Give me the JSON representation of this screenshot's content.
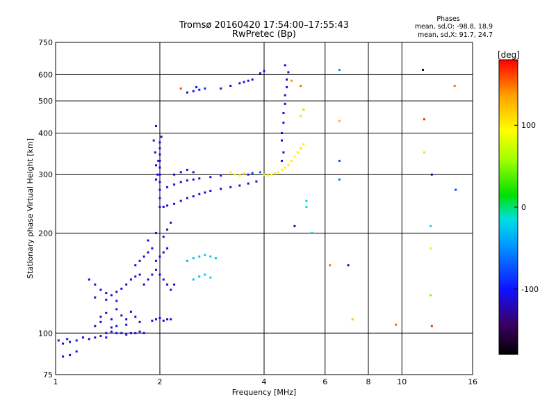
{
  "chart_data": {
    "type": "scatter",
    "title": "Tromsø 20160420 17:54:00–17:55:43",
    "subtitle": "RwPretec (Bp)",
    "xlabel": "Frequency [MHz]",
    "ylabel": "Stationary phase Virtual Height [km]",
    "x_scale": "log",
    "y_scale": "log",
    "xlim": [
      1,
      16
    ],
    "ylim": [
      75,
      750
    ],
    "x_ticks": [
      1,
      2,
      4,
      6,
      8,
      10,
      16
    ],
    "y_ticks": [
      75,
      100,
      200,
      300,
      400,
      500,
      600,
      750
    ],
    "grid": true,
    "stats": {
      "heading": "Phases",
      "line_o": "mean, sd,O: -98.8, 18.9",
      "line_x": "mean, sd,X:  91.7, 24.7"
    },
    "colorbar": {
      "label": "[deg]",
      "ticks": [
        100,
        0,
        -100
      ],
      "range": [
        -180,
        180
      ],
      "colors": [
        "#000000",
        "#3a0060",
        "#1010ff",
        "#00a0ff",
        "#00e0e0",
        "#00e000",
        "#a0ff00",
        "#ffff00",
        "#ffa000",
        "#ff0000"
      ]
    },
    "series": [
      {
        "points": [
          [
            1.02,
            95,
            -110
          ],
          [
            1.05,
            93,
            -110
          ],
          [
            1.08,
            96,
            -105
          ],
          [
            1.1,
            94,
            -110
          ],
          [
            1.15,
            95,
            -108
          ],
          [
            1.2,
            97,
            -110
          ],
          [
            1.25,
            96,
            -105
          ],
          [
            1.3,
            97,
            -110
          ],
          [
            1.35,
            98,
            -108
          ],
          [
            1.4,
            97,
            -105
          ],
          [
            1.05,
            85,
            -108
          ],
          [
            1.1,
            86,
            -110
          ],
          [
            1.15,
            88,
            -100
          ],
          [
            1.4,
            100,
            -112
          ],
          [
            1.45,
            101,
            -115
          ],
          [
            1.5,
            100,
            -112
          ],
          [
            1.55,
            100,
            -110
          ],
          [
            1.6,
            99,
            -112
          ],
          [
            1.65,
            100,
            -115
          ],
          [
            1.7,
            100,
            -112
          ],
          [
            1.75,
            101,
            -110
          ],
          [
            1.8,
            100,
            -112
          ],
          [
            1.45,
            104,
            -110
          ],
          [
            1.5,
            105,
            -112
          ],
          [
            1.6,
            106,
            -110
          ],
          [
            1.35,
            112,
            -110
          ],
          [
            1.4,
            115,
            -115
          ],
          [
            1.45,
            110,
            -112
          ],
          [
            1.5,
            118,
            -110
          ],
          [
            1.55,
            113,
            -112
          ],
          [
            1.6,
            110,
            -115
          ],
          [
            1.65,
            116,
            -110
          ],
          [
            1.7,
            112,
            -112
          ],
          [
            1.75,
            108,
            -110
          ],
          [
            1.3,
            105,
            -112
          ],
          [
            1.35,
            108,
            -110
          ],
          [
            1.9,
            109,
            -115
          ],
          [
            1.95,
            110,
            -112
          ],
          [
            2.0,
            111,
            -110
          ],
          [
            2.05,
            109,
            -112
          ],
          [
            2.1,
            110,
            -115
          ],
          [
            2.15,
            110,
            -110
          ],
          [
            1.25,
            145,
            -112
          ],
          [
            1.3,
            140,
            -110
          ],
          [
            1.35,
            135,
            -115
          ],
          [
            1.4,
            132,
            -112
          ],
          [
            1.45,
            130,
            -110
          ],
          [
            1.5,
            133,
            -112
          ],
          [
            1.55,
            136,
            -115
          ],
          [
            1.6,
            140,
            -110
          ],
          [
            1.65,
            145,
            -112
          ],
          [
            1.7,
            148,
            -110
          ],
          [
            1.75,
            150,
            -112
          ],
          [
            1.3,
            128,
            -110
          ],
          [
            1.4,
            126,
            -112
          ],
          [
            1.5,
            125,
            -110
          ],
          [
            1.7,
            160,
            -112
          ],
          [
            1.75,
            165,
            -110
          ],
          [
            1.8,
            170,
            -115
          ],
          [
            1.85,
            175,
            -112
          ],
          [
            1.9,
            180,
            -110
          ],
          [
            1.95,
            165,
            -112
          ],
          [
            2.0,
            170,
            -110
          ],
          [
            2.05,
            175,
            -112
          ],
          [
            2.1,
            180,
            -110
          ],
          [
            1.8,
            140,
            -112
          ],
          [
            1.85,
            145,
            -115
          ],
          [
            1.9,
            150,
            -112
          ],
          [
            1.95,
            155,
            -110
          ],
          [
            2.0,
            150,
            -112
          ],
          [
            2.05,
            145,
            -110
          ],
          [
            2.1,
            140,
            -112
          ],
          [
            2.15,
            135,
            -110
          ],
          [
            2.2,
            140,
            -112
          ],
          [
            1.85,
            190,
            -110
          ],
          [
            1.95,
            200,
            -112
          ],
          [
            2.05,
            195,
            -110
          ],
          [
            2.1,
            205,
            -112
          ],
          [
            2.15,
            215,
            -110
          ],
          [
            2.0,
            240,
            -110
          ],
          [
            2.0,
            255,
            -112
          ],
          [
            2.0,
            270,
            -110
          ],
          [
            2.0,
            285,
            -112
          ],
          [
            2.0,
            300,
            -110
          ],
          [
            2.0,
            315,
            -112
          ],
          [
            2.0,
            330,
            -110
          ],
          [
            2.0,
            345,
            -112
          ],
          [
            2.0,
            360,
            -110
          ],
          [
            2.0,
            375,
            -112
          ],
          [
            2.02,
            390,
            -110
          ],
          [
            1.98,
            330,
            -112
          ],
          [
            1.97,
            300,
            -110
          ],
          [
            1.95,
            290,
            -112
          ],
          [
            1.95,
            320,
            -110
          ],
          [
            1.94,
            350,
            -112
          ],
          [
            1.92,
            380,
            -110
          ],
          [
            1.95,
            420,
            -112
          ],
          [
            2.05,
            240,
            -110
          ],
          [
            2.1,
            242,
            -112
          ],
          [
            2.2,
            245,
            -110
          ],
          [
            2.3,
            250,
            -112
          ],
          [
            2.4,
            255,
            -110
          ],
          [
            2.5,
            258,
            -112
          ],
          [
            2.6,
            262,
            -110
          ],
          [
            2.7,
            265,
            -112
          ],
          [
            2.8,
            268,
            -110
          ],
          [
            3.0,
            272,
            -112
          ],
          [
            3.2,
            275,
            -110
          ],
          [
            3.4,
            278,
            -112
          ],
          [
            3.6,
            282,
            -110
          ],
          [
            3.8,
            286,
            -112
          ],
          [
            2.1,
            275,
            -110
          ],
          [
            2.2,
            280,
            -112
          ],
          [
            2.3,
            285,
            -110
          ],
          [
            2.4,
            288,
            -112
          ],
          [
            2.5,
            290,
            -110
          ],
          [
            2.6,
            292,
            -112
          ],
          [
            2.8,
            295,
            -110
          ],
          [
            3.0,
            298,
            -112
          ],
          [
            2.2,
            300,
            -110
          ],
          [
            2.3,
            305,
            -112
          ],
          [
            2.4,
            310,
            -110
          ],
          [
            2.5,
            305,
            -112
          ],
          [
            3.6,
            300,
            -90
          ],
          [
            3.7,
            303,
            -80
          ],
          [
            3.9,
            305,
            -60
          ],
          [
            4.0,
            300,
            80
          ],
          [
            4.1,
            298,
            100
          ],
          [
            4.2,
            300,
            95
          ],
          [
            4.3,
            302,
            110
          ],
          [
            4.4,
            305,
            100
          ],
          [
            4.5,
            310,
            95
          ],
          [
            4.6,
            315,
            100
          ],
          [
            4.7,
            320,
            105
          ],
          [
            4.8,
            330,
            100
          ],
          [
            4.9,
            340,
            95
          ],
          [
            5.0,
            350,
            100
          ],
          [
            5.1,
            360,
            110
          ],
          [
            5.2,
            370,
            100
          ],
          [
            3.2,
            305,
            100
          ],
          [
            3.3,
            300,
            95
          ],
          [
            3.5,
            302,
            105
          ],
          [
            3.4,
            298,
            90
          ],
          [
            4.5,
            380,
            -110
          ],
          [
            4.5,
            400,
            -112
          ],
          [
            4.55,
            430,
            -110
          ],
          [
            4.55,
            460,
            -112
          ],
          [
            4.6,
            490,
            -110
          ],
          [
            4.6,
            520,
            -112
          ],
          [
            4.65,
            550,
            -110
          ],
          [
            4.65,
            580,
            -112
          ],
          [
            4.7,
            610,
            -110
          ],
          [
            4.6,
            640,
            -112
          ],
          [
            4.55,
            350,
            -110
          ],
          [
            4.5,
            330,
            -112
          ],
          [
            2.4,
            530,
            -110
          ],
          [
            2.5,
            535,
            -112
          ],
          [
            2.6,
            540,
            -110
          ],
          [
            2.7,
            545,
            -90
          ],
          [
            2.55,
            550,
            -100
          ],
          [
            3.0,
            545,
            -110
          ],
          [
            3.2,
            555,
            -112
          ],
          [
            3.4,
            565,
            -110
          ],
          [
            3.5,
            570,
            -112
          ],
          [
            3.6,
            575,
            -110
          ],
          [
            3.7,
            580,
            -112
          ],
          [
            3.9,
            605,
            -110
          ],
          [
            4.0,
            615,
            -112
          ],
          [
            2.3,
            545,
            160
          ],
          [
            2.4,
            165,
            -30
          ],
          [
            2.5,
            168,
            -25
          ],
          [
            2.6,
            170,
            -28
          ],
          [
            2.7,
            172,
            -20
          ],
          [
            2.8,
            170,
            -22
          ],
          [
            2.9,
            168,
            -25
          ],
          [
            2.5,
            145,
            -30
          ],
          [
            2.6,
            148,
            -28
          ],
          [
            2.7,
            150,
            -25
          ],
          [
            2.8,
            147,
            -20
          ],
          [
            4.8,
            575,
            140
          ],
          [
            5.1,
            555,
            150
          ],
          [
            5.1,
            450,
            110
          ],
          [
            5.2,
            470,
            120
          ],
          [
            6.6,
            620,
            -50
          ],
          [
            6.6,
            435,
            130
          ],
          [
            6.6,
            330,
            -80
          ],
          [
            6.6,
            290,
            -60
          ],
          [
            5.3,
            250,
            -20
          ],
          [
            5.3,
            240,
            -10
          ],
          [
            4.9,
            210,
            -120
          ],
          [
            5.5,
            200,
            -20
          ],
          [
            6.2,
            160,
            150
          ],
          [
            7.0,
            160,
            -120
          ],
          [
            7.2,
            110,
            120
          ],
          [
            9.6,
            106,
            150
          ],
          [
            11.5,
            620,
            -150
          ],
          [
            11.6,
            440,
            170
          ],
          [
            11.6,
            350,
            110
          ],
          [
            12.2,
            300,
            -120
          ],
          [
            12.1,
            210,
            -20
          ],
          [
            12.1,
            180,
            80
          ],
          [
            12.1,
            130,
            50
          ],
          [
            12.2,
            105,
            170
          ],
          [
            14.3,
            270,
            -80
          ],
          [
            14.2,
            555,
            150
          ]
        ]
      }
    ]
  }
}
